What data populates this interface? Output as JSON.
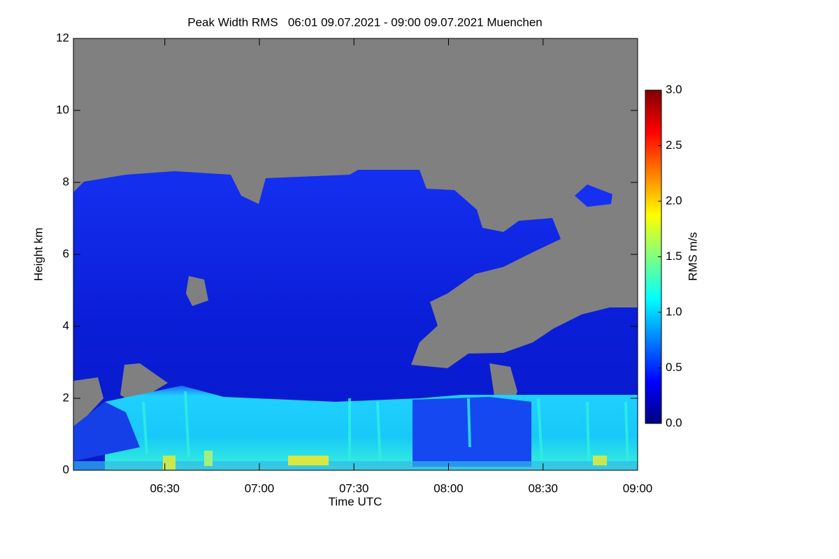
{
  "chart_data": {
    "type": "heatmap",
    "title": "Peak Width RMS   06:01 09.07.2021 - 09:00 09.07.2021 Muenchen",
    "x_label": "Time UTC",
    "y_label": "Height km",
    "xlim": [
      "06:01",
      "09:00"
    ],
    "xticks": [
      "06:30",
      "07:00",
      "07:30",
      "08:00",
      "08:30",
      "09:00"
    ],
    "ylim": [
      0,
      12
    ],
    "yticks": [
      0,
      2,
      4,
      6,
      8,
      10,
      12
    ],
    "colorbar": {
      "label": "RMS m/s",
      "lim": [
        0,
        3
      ],
      "ticks": [
        {
          "value": 0,
          "label": "0.0"
        },
        {
          "value": 0.5,
          "label": "0.5"
        },
        {
          "value": 1,
          "label": "1.0"
        },
        {
          "value": 1.5,
          "label": "1.5"
        },
        {
          "value": 2,
          "label": "2.0"
        },
        {
          "value": 2.5,
          "label": "2.5"
        },
        {
          "value": 3,
          "label": "3.0"
        }
      ]
    }
  }
}
